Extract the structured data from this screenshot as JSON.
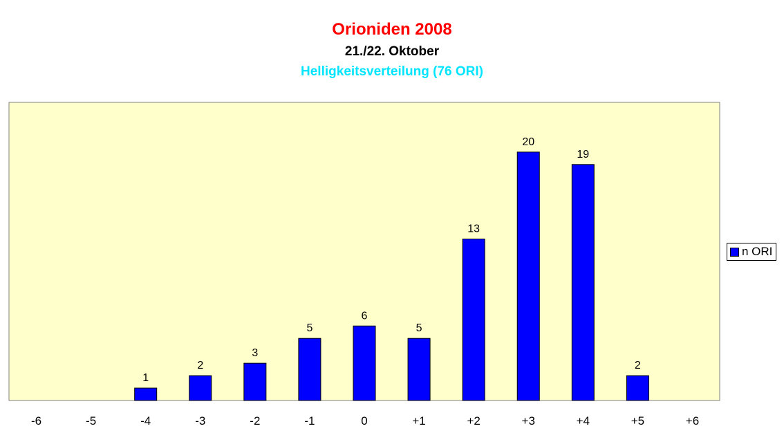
{
  "chart_data": {
    "type": "bar",
    "title": "Orioniden 2008",
    "subtitle": "21./22. Oktober",
    "subtitle2": "Helligkeitsverteilung (76 ORI)",
    "categories": [
      "-6",
      "-5",
      "-4",
      "-3",
      "-2",
      "-1",
      "0",
      "+1",
      "+2",
      "+3",
      "+4",
      "+5",
      "+6"
    ],
    "series": [
      {
        "name": "n ORI",
        "values": [
          0,
          0,
          1,
          2,
          3,
          5,
          6,
          5,
          13,
          20,
          19,
          2,
          0
        ]
      }
    ],
    "data_labels": [
      "",
      "",
      "1",
      "2",
      "3",
      "5",
      "6",
      "5",
      "13",
      "20",
      "19",
      "2",
      ""
    ],
    "ylim": [
      0,
      24
    ],
    "grid": false,
    "legend": "right",
    "colors": {
      "bar": "#0000ff",
      "plot_background": "#ffffcc",
      "title": "#ff0000",
      "subtitle2": "#00e5ff"
    }
  }
}
